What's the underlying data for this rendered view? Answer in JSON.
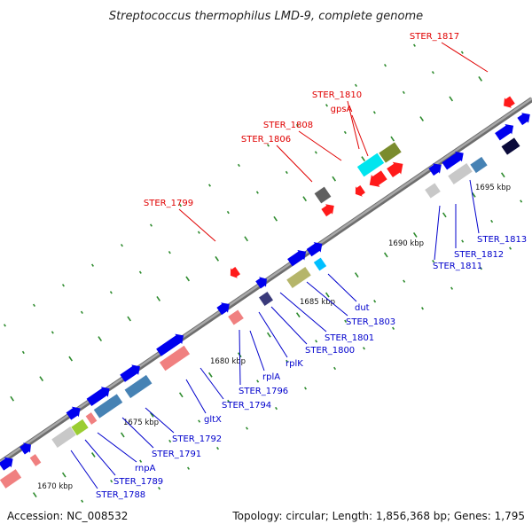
{
  "title": "Streptococcus thermophilus LMD-9, complete genome",
  "footer": {
    "accession": "Accession: NC_008532",
    "summary": "Topology: circular; Length: 1,856,368 bp; Genes: 1,795"
  },
  "colors": {
    "backbone": "#8a8a8a",
    "tick": "#2e8b2e",
    "label_upper": "#e00000",
    "label_lower": "#0000cc"
  },
  "ticks": [
    "1670 kbp",
    "1675 kbp",
    "1680 kbp",
    "1685 kbp",
    "1690 kbp",
    "1695 kbp"
  ],
  "upper_genes": [
    {
      "label": "STER_1817",
      "color": "#ff1a1a"
    },
    {
      "label": "STER_1810",
      "color": "#7a8c2e"
    },
    {
      "label": "gpsA",
      "color": "#00e5ee"
    },
    {
      "label": "STER_1808",
      "color": "#ff1a1a"
    },
    {
      "label": "STER_1806",
      "color": "#606060"
    },
    {
      "label": "STER_1799",
      "color": "#ff1a1a"
    }
  ],
  "lower_genes": [
    {
      "label": "STER_1813",
      "color": "#4682b4"
    },
    {
      "label": "STER_1812",
      "color": "#c8c8c8"
    },
    {
      "label": "STER_1811",
      "color": "#0000ee"
    },
    {
      "label": "dut",
      "color": "#00bfff"
    },
    {
      "label": "STER_1803",
      "color": "#b5b56a"
    },
    {
      "label": "STER_1801",
      "color": "#0000ee"
    },
    {
      "label": "STER_1800",
      "color": "#3a3a7a"
    },
    {
      "label": "rplK",
      "color": "#0000ee"
    },
    {
      "label": "rplA",
      "color": "#0000ee"
    },
    {
      "label": "STER_1796",
      "color": "#f08080"
    },
    {
      "label": "STER_1794",
      "color": "#0000ee"
    },
    {
      "label": "gltX",
      "color": "#f08080"
    },
    {
      "label": "STER_1792",
      "color": "#0000ee"
    },
    {
      "label": "STER_1791",
      "color": "#4682b4"
    },
    {
      "label": "rnpA",
      "color": "#f08080"
    },
    {
      "label": "STER_1789",
      "color": "#9acd32"
    },
    {
      "label": "STER_1788",
      "color": "#c8c8c8"
    }
  ]
}
